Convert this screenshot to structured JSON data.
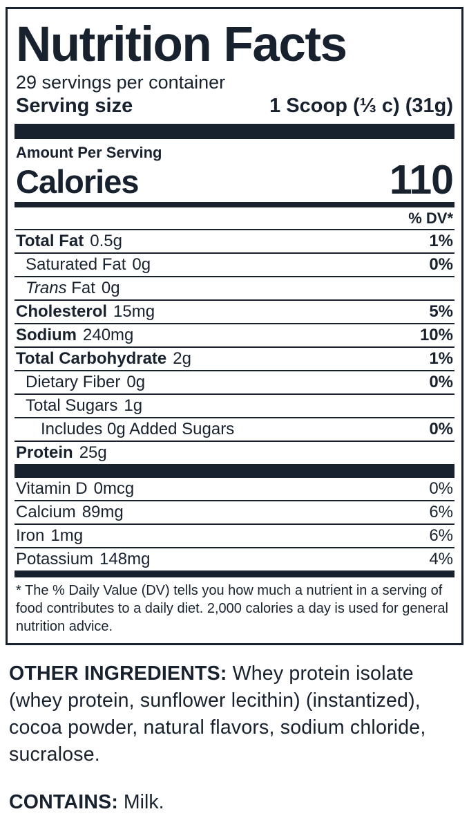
{
  "label": {
    "title": "Nutrition Facts",
    "servings_per_container": "29 servings per container",
    "serving_size_label": "Serving size",
    "serving_size_value": "1 Scoop (⅓ c) (31g)",
    "amount_per_serving": "Amount Per Serving",
    "calories_label": "Calories",
    "calories_value": "110",
    "dv_header": "% DV*",
    "footnote": "* The % Daily Value (DV) tells you how much a nutrient in a serving of food contributes to a daily diet. 2,000 calories a day is used for general nutrition advice."
  },
  "nutrients": [
    {
      "name": "Total Fat",
      "amount": "0.5g",
      "dv": "1%"
    },
    {
      "name": "Saturated Fat",
      "amount": "0g",
      "dv": "0%"
    },
    {
      "name": "Trans",
      "name2": " Fat",
      "amount": "0g",
      "dv": ""
    },
    {
      "name": "Cholesterol",
      "amount": "15mg",
      "dv": "5%"
    },
    {
      "name": "Sodium",
      "amount": "240mg",
      "dv": "10%"
    },
    {
      "name": "Total Carbohydrate",
      "amount": "2g",
      "dv": "1%"
    },
    {
      "name": "Dietary Fiber",
      "amount": "0g",
      "dv": "0%"
    },
    {
      "name": "Total Sugars",
      "amount": "1g",
      "dv": ""
    },
    {
      "name": "Includes 0g Added Sugars",
      "amount": "",
      "dv": "0%"
    },
    {
      "name": "Protein",
      "amount": "25g",
      "dv": ""
    }
  ],
  "vitamins": [
    {
      "name": "Vitamin D",
      "amount": "0mcg",
      "dv": "0%"
    },
    {
      "name": "Calcium",
      "amount": "89mg",
      "dv": "6%"
    },
    {
      "name": "Iron",
      "amount": "1mg",
      "dv": "6%"
    },
    {
      "name": "Potassium",
      "amount": "148mg",
      "dv": "4%"
    }
  ],
  "other_ingredients": {
    "heading": "OTHER INGREDIENTS:",
    "text": " Whey protein isolate (whey protein, sunflower lecithin) (instantized), cocoa powder, natural flavors, sodium chloride, sucralose."
  },
  "contains": {
    "heading": "CONTAINS:",
    "text": " Milk."
  },
  "colors": {
    "ink": "#18222e",
    "background": "#ffffff"
  }
}
